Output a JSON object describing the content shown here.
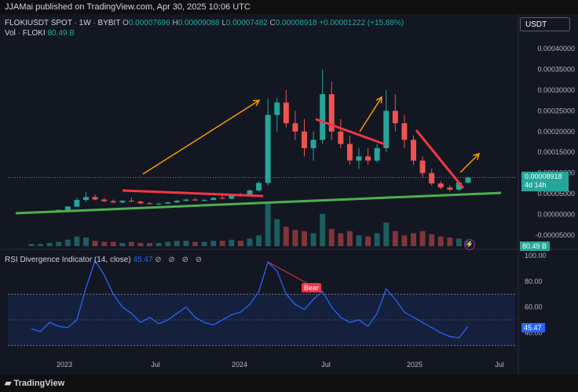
{
  "header": {
    "publisher": "JJAMai published on TradingView.com, Apr 30, 2025 10:06 UTC"
  },
  "legend": {
    "symbol": "FLOKIUSDT SPOT · 1W · BYBIT",
    "o_label": "O",
    "o_value": "0.00007696",
    "h_label": "H",
    "h_value": "0.00009088",
    "l_label": "L",
    "l_value": "0.00007482",
    "c_label": "C",
    "c_value": "0.00008918",
    "change": "+0.00001222 (+15.88%)"
  },
  "volume_legend": {
    "label": "Vol · FLOKI",
    "value": "80.49 B"
  },
  "currency": "USDT",
  "price_axis": {
    "ticks": [
      "0.00040000",
      "0.00035000",
      "0.00030000",
      "0.00025000",
      "0.00020000",
      "0.00015000",
      "0.00010000",
      "0.00005000",
      "0.00000000",
      "-0.00005000"
    ]
  },
  "price_tag": {
    "price": "0.00008918",
    "countdown": "4d 14h"
  },
  "volume_tag": "80.49 B",
  "rsi": {
    "title": "RSI Divergence Indicator (14, close)",
    "value": "45.47",
    "icons": "⊘ ⊘ ⊘ ⊘",
    "ticks": [
      "100.00",
      "80.00",
      "60.00",
      "40.00"
    ],
    "tag": "45.47",
    "bear_label": "Bear"
  },
  "time_axis": [
    "2023",
    "Jul",
    "2024",
    "Jul",
    "2025",
    "Jul"
  ],
  "footer": {
    "brand": "TradingView"
  },
  "colors": {
    "up": "#26a69a",
    "down": "#ef5350",
    "rsi_line": "#2962ff",
    "support_line": "#4caf50",
    "resistance_line": "#f23645",
    "arrow": "#ff9800"
  },
  "chart_data": {
    "type": "candlestick",
    "price_ylim": [
      -5e-05,
      0.0004
    ],
    "rsi_ylim": [
      0,
      100
    ],
    "rsi_overbought": 70,
    "rsi_oversold": 30,
    "candles": [
      {
        "o": 5e-06,
        "h": 7e-06,
        "l": 4e-06,
        "c": 6e-06
      },
      {
        "o": 6e-06,
        "h": 8e-06,
        "l": 5e-06,
        "c": 7e-06
      },
      {
        "o": 7e-06,
        "h": 9e-06,
        "l": 6e-06,
        "c": 8e-06
      },
      {
        "o": 8e-06,
        "h": 1.2e-05,
        "l": 7e-06,
        "c": 1.1e-05
      },
      {
        "o": 1.1e-05,
        "h": 2e-05,
        "l": 1e-05,
        "c": 1.9e-05
      },
      {
        "o": 1.9e-05,
        "h": 4e-05,
        "l": 1.8e-05,
        "c": 3.5e-05
      },
      {
        "o": 3.5e-05,
        "h": 5.5e-05,
        "l": 3e-05,
        "c": 4.2e-05
      },
      {
        "o": 4.2e-05,
        "h": 4.8e-05,
        "l": 3.4e-05,
        "c": 3.6e-05
      },
      {
        "o": 3.6e-05,
        "h": 4e-05,
        "l": 3e-05,
        "c": 3.2e-05
      },
      {
        "o": 3.2e-05,
        "h": 3.6e-05,
        "l": 2.7e-05,
        "c": 2.9e-05
      },
      {
        "o": 2.9e-05,
        "h": 3.4e-05,
        "l": 2.6e-05,
        "c": 3.3e-05
      },
      {
        "o": 3.3e-05,
        "h": 4e-05,
        "l": 3e-05,
        "c": 3.1e-05
      },
      {
        "o": 3.1e-05,
        "h": 3.3e-05,
        "l": 2.5e-05,
        "c": 2.7e-05
      },
      {
        "o": 2.7e-05,
        "h": 3e-05,
        "l": 2.4e-05,
        "c": 2.5e-05
      },
      {
        "o": 2.5e-05,
        "h": 2.8e-05,
        "l": 2.3e-05,
        "c": 2.6e-05
      },
      {
        "o": 2.6e-05,
        "h": 3.1e-05,
        "l": 2.5e-05,
        "c": 2.9e-05
      },
      {
        "o": 2.9e-05,
        "h": 3.5e-05,
        "l": 2.8e-05,
        "c": 3.3e-05
      },
      {
        "o": 3.3e-05,
        "h": 3.8e-05,
        "l": 3.1e-05,
        "c": 3.6e-05
      },
      {
        "o": 3.6e-05,
        "h": 4e-05,
        "l": 3.3e-05,
        "c": 3.4e-05
      },
      {
        "o": 3.4e-05,
        "h": 3.7e-05,
        "l": 3.2e-05,
        "c": 3.5e-05
      },
      {
        "o": 3.5e-05,
        "h": 4.2e-05,
        "l": 3.4e-05,
        "c": 4e-05
      },
      {
        "o": 4e-05,
        "h": 4.5e-05,
        "l": 3.7e-05,
        "c": 3.8e-05
      },
      {
        "o": 3.8e-05,
        "h": 4.8e-05,
        "l": 3.7e-05,
        "c": 4.6e-05
      },
      {
        "o": 4.6e-05,
        "h": 5.2e-05,
        "l": 4.3e-05,
        "c": 4.4e-05
      },
      {
        "o": 4.4e-05,
        "h": 6e-05,
        "l": 4.3e-05,
        "c": 5.8e-05
      },
      {
        "o": 5.8e-05,
        "h": 8e-05,
        "l": 5.5e-05,
        "c": 7.6e-05
      },
      {
        "o": 7.6e-05,
        "h": 0.00028,
        "l": 7e-05,
        "c": 0.00024
      },
      {
        "o": 0.00024,
        "h": 0.00028,
        "l": 0.0002,
        "c": 0.00027
      },
      {
        "o": 0.00027,
        "h": 0.0003,
        "l": 0.00021,
        "c": 0.00022
      },
      {
        "o": 0.00022,
        "h": 0.00025,
        "l": 0.00018,
        "c": 0.0002
      },
      {
        "o": 0.0002,
        "h": 0.00023,
        "l": 0.00014,
        "c": 0.00016
      },
      {
        "o": 0.00016,
        "h": 0.0002,
        "l": 0.00013,
        "c": 0.00018
      },
      {
        "o": 0.00018,
        "h": 0.00035,
        "l": 0.00017,
        "c": 0.00029
      },
      {
        "o": 0.00029,
        "h": 0.00032,
        "l": 0.00018,
        "c": 0.0002
      },
      {
        "o": 0.0002,
        "h": 0.00023,
        "l": 0.00016,
        "c": 0.00017
      },
      {
        "o": 0.00017,
        "h": 0.00019,
        "l": 0.00012,
        "c": 0.00013
      },
      {
        "o": 0.00013,
        "h": 0.00016,
        "l": 0.00011,
        "c": 0.00014
      },
      {
        "o": 0.00014,
        "h": 0.00016,
        "l": 0.00012,
        "c": 0.00013
      },
      {
        "o": 0.00013,
        "h": 0.00017,
        "l": 0.000125,
        "c": 0.00016
      },
      {
        "o": 0.00016,
        "h": 0.0003,
        "l": 0.00015,
        "c": 0.00025
      },
      {
        "o": 0.00025,
        "h": 0.00029,
        "l": 0.0002,
        "c": 0.00022
      },
      {
        "o": 0.00022,
        "h": 0.00024,
        "l": 0.00016,
        "c": 0.00018
      },
      {
        "o": 0.00018,
        "h": 0.00019,
        "l": 0.00012,
        "c": 0.00013
      },
      {
        "o": 0.00013,
        "h": 0.00014,
        "l": 9e-05,
        "c": 0.0001
      },
      {
        "o": 0.0001,
        "h": 0.00011,
        "l": 7e-05,
        "c": 7.5e-05
      },
      {
        "o": 7.5e-05,
        "h": 8e-05,
        "l": 6e-05,
        "c": 6.5e-05
      },
      {
        "o": 6.5e-05,
        "h": 7e-05,
        "l": 5.5e-05,
        "c": 6e-05
      },
      {
        "o": 6e-05,
        "h": 8e-05,
        "l": 5.6e-05,
        "c": 7.7e-05
      },
      {
        "o": 7.696e-05,
        "h": 9.088e-05,
        "l": 7.482e-05,
        "c": 8.918e-05
      }
    ],
    "volume": [
      2,
      2,
      3,
      4,
      6,
      9,
      8,
      5,
      4,
      4,
      3,
      4,
      3,
      3,
      3,
      4,
      5,
      5,
      4,
      4,
      5,
      5,
      6,
      5,
      7,
      10,
      40,
      25,
      18,
      15,
      14,
      12,
      30,
      16,
      12,
      14,
      10,
      9,
      12,
      22,
      14,
      10,
      12,
      14,
      11,
      9,
      8,
      7,
      5
    ],
    "rsi_values": [
      43,
      41,
      48,
      45,
      44,
      50,
      75,
      96,
      85,
      70,
      60,
      55,
      48,
      52,
      47,
      50,
      55,
      60,
      52,
      48,
      46,
      50,
      54,
      56,
      62,
      72,
      95,
      88,
      70,
      62,
      58,
      66,
      72,
      60,
      52,
      48,
      50,
      45,
      55,
      74,
      66,
      56,
      52,
      48,
      44,
      40,
      37,
      36,
      45
    ]
  }
}
